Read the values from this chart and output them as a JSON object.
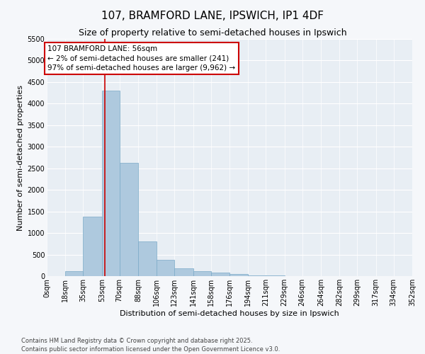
{
  "title": "107, BRAMFORD LANE, IPSWICH, IP1 4DF",
  "subtitle": "Size of property relative to semi-detached houses in Ipswich",
  "xlabel": "Distribution of semi-detached houses by size in Ipswich",
  "ylabel": "Number of semi-detached properties",
  "footer_line1": "Contains HM Land Registry data © Crown copyright and database right 2025.",
  "footer_line2": "Contains public sector information licensed under the Open Government Licence v3.0.",
  "annotation_line1": "107 BRAMFORD LANE: 56sqm",
  "annotation_line2": "← 2% of semi-detached houses are smaller (241)",
  "annotation_line3": "97% of semi-detached houses are larger (9,962) →",
  "property_size": 56,
  "bar_color": "#aec9de",
  "bar_edge_color": "#7aaac8",
  "vline_color": "#cc0000",
  "annotation_box_edge_color": "#cc0000",
  "bin_edges": [
    0,
    18,
    35,
    53,
    70,
    88,
    106,
    123,
    141,
    158,
    176,
    194,
    211,
    229,
    246,
    264,
    282,
    299,
    317,
    334,
    352
  ],
  "bin_labels": [
    "0sqm",
    "18sqm",
    "35sqm",
    "53sqm",
    "70sqm",
    "88sqm",
    "106sqm",
    "123sqm",
    "141sqm",
    "158sqm",
    "176sqm",
    "194sqm",
    "211sqm",
    "229sqm",
    "246sqm",
    "264sqm",
    "282sqm",
    "299sqm",
    "317sqm",
    "334sqm",
    "352sqm"
  ],
  "counts": [
    5,
    120,
    1380,
    4300,
    2620,
    800,
    380,
    175,
    115,
    90,
    50,
    20,
    10,
    5,
    5,
    5,
    5,
    5,
    5,
    5
  ],
  "ylim": [
    0,
    5500
  ],
  "yticks": [
    0,
    500,
    1000,
    1500,
    2000,
    2500,
    3000,
    3500,
    4000,
    4500,
    5000,
    5500
  ],
  "plot_bg_color": "#e8eef4",
  "fig_bg_color": "#f5f7fa",
  "grid_color": "#ffffff",
  "title_fontsize": 11,
  "subtitle_fontsize": 9,
  "axis_label_fontsize": 8,
  "tick_fontsize": 7,
  "annotation_fontsize": 7.5,
  "footer_fontsize": 6
}
